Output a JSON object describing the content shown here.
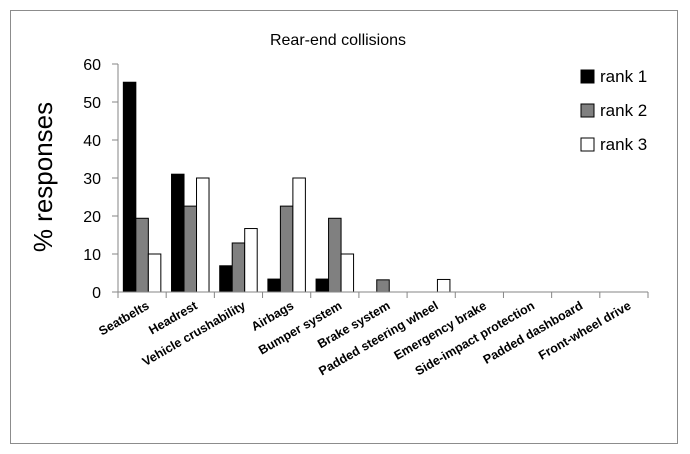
{
  "chart_data": {
    "type": "bar",
    "title": "Rear-end collisions",
    "xlabel": "",
    "ylabel": "% responses",
    "ylim": [
      0,
      60
    ],
    "yticks": [
      0,
      10,
      20,
      30,
      40,
      50,
      60
    ],
    "grid": false,
    "legend_position": "top-right",
    "categories": [
      "Seatbelts",
      "Headrest",
      "Vehicle crushability",
      "Airbags",
      "Bumper system",
      "Brake system",
      "Padded steering wheel",
      "Emergency brake",
      "Side-impact protection",
      "Padded dashboard",
      "Front-wheel drive"
    ],
    "series": [
      {
        "name": "rank 1",
        "color": "#000000",
        "values": [
          55.2,
          31,
          6.9,
          3.4,
          3.4,
          0,
          0,
          0,
          0,
          0,
          0
        ]
      },
      {
        "name": "rank 2",
        "color": "#808080",
        "values": [
          19.4,
          22.6,
          12.9,
          22.6,
          19.4,
          3.2,
          0,
          0,
          0,
          0,
          0
        ]
      },
      {
        "name": "rank 3",
        "color": "#ffffff",
        "values": [
          10,
          30,
          16.7,
          30,
          10,
          0,
          3.3,
          0,
          0,
          0,
          0
        ]
      }
    ]
  }
}
